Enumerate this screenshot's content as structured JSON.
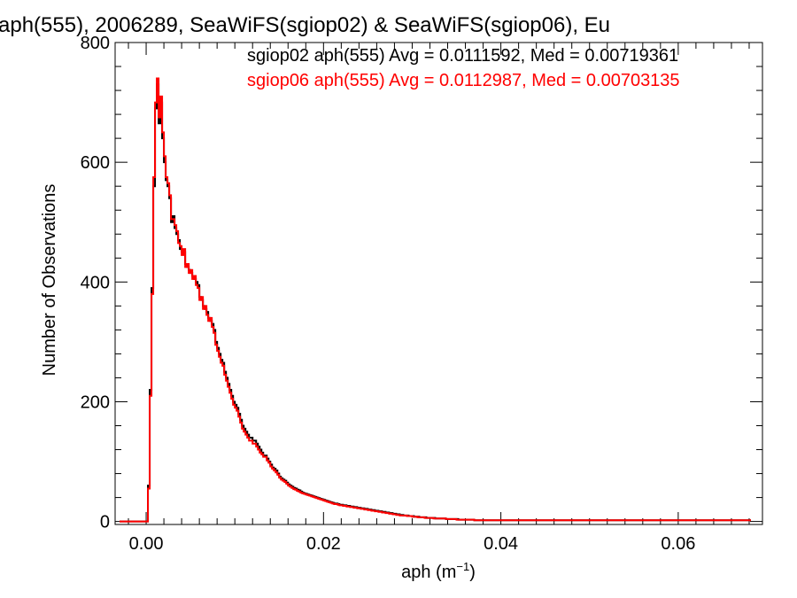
{
  "chart_data": {
    "type": "line",
    "title": "aph(555), 2006289, SeaWiFS(sgiop02) & SeaWiFS(sgiop06), Eu",
    "xlabel_main": "aph (m",
    "xlabel_sup": "−1",
    "xlabel_close": ")",
    "ylabel": "Number of Observations",
    "xlim": [
      -0.0035,
      0.0695
    ],
    "ylim": [
      -5,
      800
    ],
    "x_ticks": [
      0.0,
      0.02,
      0.04,
      0.06
    ],
    "x_tick_labels": [
      "0.00",
      "0.02",
      "0.04",
      "0.06"
    ],
    "x_minor_step": 0.002,
    "y_ticks": [
      0,
      200,
      400,
      600,
      800
    ],
    "y_tick_labels": [
      "0",
      "200",
      "400",
      "600",
      "800"
    ],
    "y_minor_step": 40,
    "grid": false,
    "legend_placement": "top-right",
    "bin_width": 0.0002,
    "x_start": -0.003,
    "series": [
      {
        "name": "sgiop02 aph(555) Avg = 0.0111592, Med = 0.00719361",
        "color": "#000000",
        "values": [
          0,
          0,
          0,
          0,
          0,
          0,
          0,
          0,
          0,
          0,
          0,
          0,
          0,
          0,
          0,
          0,
          60,
          220,
          390,
          560,
          690,
          730,
          665,
          700,
          640,
          600,
          570,
          560,
          540,
          500,
          510,
          490,
          480,
          470,
          455,
          450,
          450,
          430,
          425,
          420,
          415,
          410,
          405,
          400,
          395,
          375,
          370,
          360,
          355,
          350,
          340,
          335,
          330,
          320,
          300,
          290,
          280,
          270,
          265,
          250,
          240,
          230,
          220,
          210,
          200,
          195,
          190,
          180,
          170,
          160,
          155,
          150,
          145,
          140,
          140,
          135,
          135,
          130,
          125,
          120,
          115,
          110,
          110,
          105,
          100,
          95,
          90,
          88,
          85,
          80,
          75,
          72,
          70,
          68,
          65,
          62,
          60,
          58,
          56,
          55,
          53,
          52,
          50,
          48,
          47,
          46,
          45,
          44,
          43,
          42,
          41,
          40,
          39,
          38,
          37,
          36,
          35,
          34,
          33,
          32,
          31,
          30,
          30,
          29,
          28,
          28,
          27,
          27,
          26,
          26,
          25,
          25,
          24,
          24,
          23,
          23,
          22,
          22,
          21,
          21,
          20,
          20,
          19,
          19,
          18,
          18,
          17,
          17,
          16,
          16,
          15,
          15,
          14,
          14,
          13,
          13,
          12,
          12,
          11,
          11,
          10,
          10,
          10,
          9,
          9,
          9,
          8,
          8,
          8,
          7,
          7,
          7,
          7,
          6,
          6,
          6,
          6,
          6,
          5,
          5,
          5,
          5,
          5,
          5,
          4,
          4,
          4,
          4,
          4,
          4,
          4,
          3,
          3,
          3,
          3,
          3,
          3,
          3,
          3,
          3,
          2,
          2,
          2,
          2,
          2,
          2,
          2,
          2,
          2,
          2,
          2,
          2,
          2,
          2,
          2,
          2,
          2,
          2,
          2,
          2,
          2,
          2,
          2,
          2,
          2,
          2,
          2,
          2,
          2,
          2,
          2,
          2,
          2,
          2,
          2,
          2,
          2,
          2,
          2,
          2,
          2,
          2,
          2,
          2,
          2,
          2,
          2,
          2,
          2,
          2,
          2,
          2,
          2,
          2,
          2,
          2,
          2,
          2,
          2,
          2,
          2,
          2,
          2,
          2,
          2,
          2,
          2,
          2,
          2,
          2,
          2,
          2,
          2,
          2,
          2,
          2,
          2,
          2,
          2,
          2,
          2,
          2,
          2,
          2,
          2,
          2,
          2,
          2,
          2,
          2,
          2,
          2,
          2,
          2,
          2,
          2,
          2,
          2,
          2,
          2,
          2,
          2,
          2,
          2,
          2,
          2,
          2,
          2,
          2,
          2,
          2,
          2,
          2,
          2,
          2,
          2,
          2,
          2,
          2,
          2,
          2,
          2,
          2,
          2,
          2,
          2,
          2,
          2,
          2,
          2,
          2,
          2,
          2,
          2,
          2,
          2,
          2,
          2,
          2,
          2,
          2,
          2,
          2,
          2,
          2,
          2,
          2,
          2,
          2,
          2,
          2,
          2,
          2,
          2,
          2,
          2
        ]
      },
      {
        "name": "sgiop06 aph(555) Avg = 0.0112987, Med = 0.00703135",
        "color": "#ff0000",
        "values": [
          0,
          0,
          0,
          0,
          0,
          0,
          0,
          0,
          0,
          0,
          0,
          0,
          0,
          0,
          0,
          0,
          55,
          210,
          380,
          575,
          700,
          740,
          675,
          710,
          650,
          610,
          575,
          565,
          545,
          505,
          505,
          495,
          485,
          465,
          460,
          445,
          455,
          425,
          430,
          415,
          420,
          405,
          410,
          395,
          390,
          370,
          375,
          355,
          360,
          345,
          335,
          340,
          325,
          315,
          295,
          285,
          275,
          265,
          260,
          245,
          235,
          225,
          215,
          205,
          195,
          190,
          185,
          175,
          165,
          155,
          150,
          145,
          140,
          135,
          135,
          130,
          130,
          125,
          120,
          115,
          112,
          108,
          108,
          102,
          98,
          92,
          88,
          85,
          82,
          78,
          73,
          70,
          68,
          66,
          63,
          60,
          58,
          56,
          54,
          53,
          51,
          50,
          48,
          47,
          46,
          45,
          44,
          43,
          42,
          41,
          40,
          39,
          38,
          37,
          36,
          35,
          34,
          33,
          32,
          31,
          30,
          29,
          29,
          28,
          27,
          27,
          26,
          26,
          25,
          25,
          24,
          24,
          23,
          23,
          22,
          22,
          21,
          21,
          20,
          20,
          19,
          19,
          18,
          18,
          17,
          17,
          16,
          16,
          15,
          15,
          14,
          14,
          13,
          13,
          12,
          12,
          11,
          11,
          10,
          10,
          10,
          10,
          9,
          9,
          9,
          8,
          8,
          8,
          7,
          7,
          7,
          7,
          6,
          6,
          6,
          6,
          6,
          5,
          5,
          5,
          5,
          5,
          5,
          5,
          4,
          4,
          4,
          4,
          4,
          4,
          3,
          3,
          3,
          3,
          3,
          3,
          3,
          3,
          3,
          3,
          2,
          2,
          2,
          2,
          2,
          2,
          2,
          2,
          2,
          2,
          2,
          2,
          2,
          2,
          2,
          2,
          2,
          2,
          2,
          2,
          2,
          2,
          2,
          2,
          2,
          2,
          2,
          2,
          2,
          2,
          2,
          2,
          2,
          2,
          2,
          2,
          2,
          2,
          2,
          2,
          2,
          2,
          2,
          2,
          2,
          2,
          2,
          2,
          2,
          2,
          2,
          2,
          2,
          2,
          2,
          2,
          2,
          2,
          2,
          2,
          2,
          2,
          2,
          2,
          2,
          2,
          2,
          2,
          2,
          2,
          2,
          2,
          2,
          2,
          2,
          2,
          2,
          2,
          2,
          2,
          2,
          2,
          2,
          2,
          2,
          2,
          2,
          2,
          2,
          2,
          2,
          2,
          2,
          2,
          2,
          2,
          2,
          2,
          2,
          2,
          2,
          2,
          2,
          2,
          2,
          2,
          2,
          2,
          2,
          2,
          2,
          2,
          2,
          2,
          2,
          2,
          2,
          2,
          2,
          2,
          2,
          2,
          2,
          2,
          2,
          2,
          2,
          2,
          2,
          2,
          2,
          2,
          2,
          2,
          2,
          2,
          2,
          2,
          2,
          2,
          2,
          2,
          2,
          2,
          2,
          2,
          2,
          2,
          2,
          2,
          2,
          2,
          2,
          2,
          2,
          2
        ]
      }
    ]
  }
}
